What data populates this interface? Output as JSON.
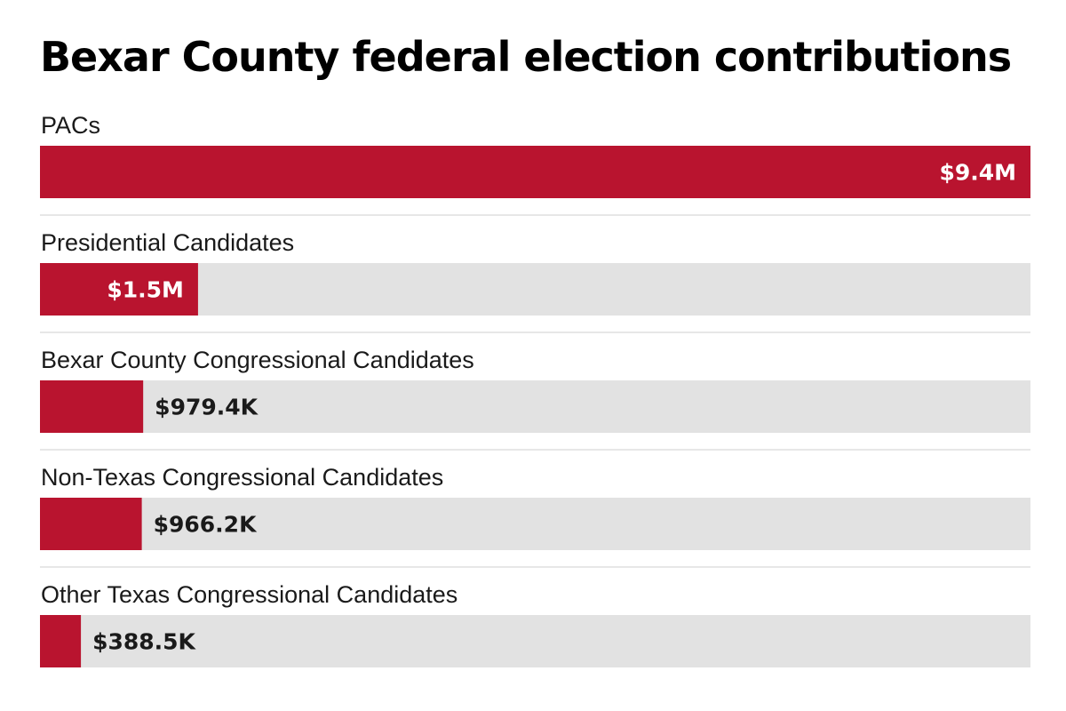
{
  "chart_data": {
    "type": "bar",
    "orientation": "horizontal",
    "title": "Bexar County federal election contributions",
    "categories": [
      "PACs",
      "Presidential Candidates",
      "Bexar County Congressional Candidates",
      "Non-Texas Congressional Candidates",
      "Other Texas Congressional Candidates"
    ],
    "values": [
      9400000,
      1500000,
      979400,
      966200,
      388500
    ],
    "value_labels": [
      "$9.4M",
      "$1.5M",
      "$979.4K",
      "$966.2K",
      "$388.5K"
    ],
    "xlim": [
      0,
      9400000
    ],
    "grid": false,
    "legend": "none",
    "colors": {
      "bar": "#b9142f",
      "track": "#e2e2e2",
      "divider": "#cfcfcf",
      "label_inside": "#ffffff",
      "label_outside": "#1a1a1a"
    }
  }
}
